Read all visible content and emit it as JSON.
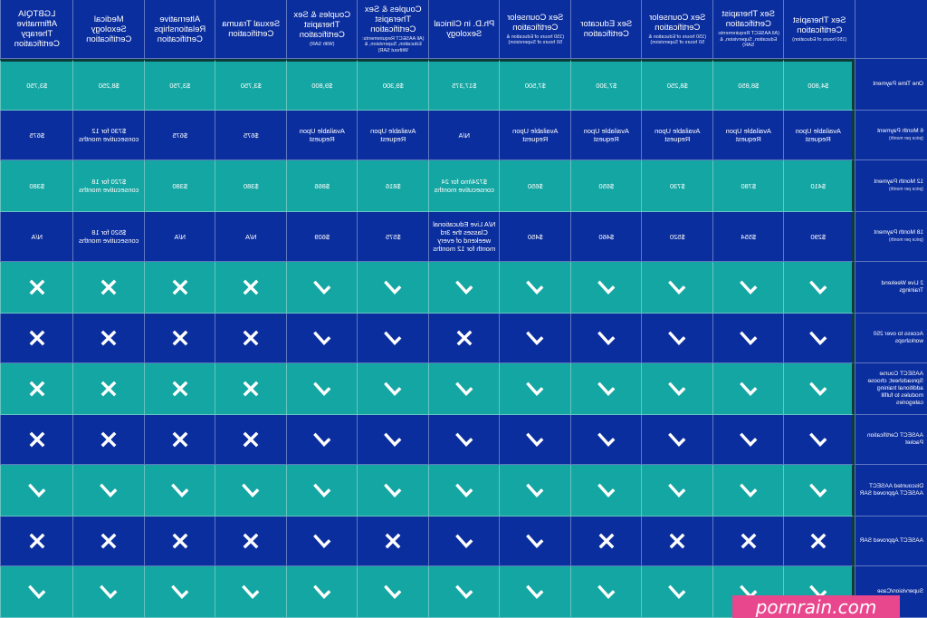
{
  "colors": {
    "teal": "#14a6a2",
    "blue": "#0b2e9e",
    "watermark": "#e8478e"
  },
  "columns": [
    {
      "title": "Sex Therapist Certification",
      "sub": "(150 hours of Education)"
    },
    {
      "title": "Sex Therapist Certification",
      "sub": "(All AASECT Requirements: Education, Supervision, & SAR)"
    },
    {
      "title": "Sex Counselor Certification",
      "sub": "(150 hours of Education & 50 hours of Supervision)"
    },
    {
      "title": "Sex Educator Certification",
      "sub": ""
    },
    {
      "title": "Sex Counselor Certification",
      "sub": "(150 hours of Education & 50 hours of Supervision)"
    },
    {
      "title": "Ph.D. in Clinical Sexology",
      "sub": ""
    },
    {
      "title": "Couples & Sex Therapist Certification",
      "sub": "(All AASECT Requirements: Education, Supervision, & Without SAR)"
    },
    {
      "title": "Couples & Sex Therapist Certification",
      "sub": "(With SAR)"
    },
    {
      "title": "Sexual Trauma Certification",
      "sub": ""
    },
    {
      "title": "Alternative Relationships Certification",
      "sub": ""
    },
    {
      "title": "Medical Sexology Certification",
      "sub": ""
    },
    {
      "title": "LGBTQIA Affirmative Therapy Certification",
      "sub": ""
    }
  ],
  "rows": [
    {
      "label": "One Time Payment",
      "sub": "",
      "type": "text",
      "color": "teal",
      "values": [
        "$4,800",
        "$8,850",
        "$8,250",
        "$7,300",
        "$7,500",
        "$17,375",
        "$9,300",
        "$9,800",
        "$3,750",
        "$3,750",
        "$8,250",
        "$3,750"
      ]
    },
    {
      "label": "6 Month Payment",
      "sub": "(price per month)",
      "type": "text",
      "color": "blue",
      "values": [
        "Available Upon Request",
        "Available Upon Request",
        "Available Upon Request",
        "Available Upon Request",
        "Available Upon Request",
        "N/A",
        "Available Upon Request",
        "Available Upon Request",
        "$675",
        "$675",
        "$730 for 12 consecutive months",
        "$675"
      ]
    },
    {
      "label": "12 Month Payment",
      "sub": "(price per month)",
      "type": "text",
      "color": "teal",
      "values": [
        "$410",
        "$780",
        "$730",
        "$650",
        "$650",
        "$724/mo for 24 consecutive months",
        "$816",
        "$866",
        "$380",
        "$380",
        "$720 for 18 consecutive months",
        "$380"
      ]
    },
    {
      "label": "18 Month Payment",
      "sub": "(price per month)",
      "type": "text",
      "color": "blue",
      "values": [
        "$290",
        "$554",
        "$520",
        "$460",
        "$450",
        "N/A Live Educational Classes the 3rd weekend of every month for 12 months",
        "$575",
        "$609",
        "N/A",
        "N/A",
        "$520 for 18 consecutive months",
        "N/A"
      ]
    },
    {
      "label": "2 Live Weekend Trainings",
      "sub": "",
      "type": "mark",
      "color": "teal",
      "values": [
        "check",
        "check",
        "check",
        "check",
        "check",
        "check",
        "check",
        "check",
        "cross",
        "cross",
        "cross",
        "cross"
      ]
    },
    {
      "label": "Access to over 250 workshops",
      "sub": "",
      "type": "mark",
      "color": "blue",
      "values": [
        "check",
        "check",
        "check",
        "check",
        "check",
        "cross",
        "check",
        "check",
        "cross",
        "cross",
        "cross",
        "cross"
      ]
    },
    {
      "label": "AASECT Course Spreadsheet; choose additional training modules to fulfill categories",
      "sub": "",
      "type": "mark",
      "color": "teal",
      "values": [
        "check",
        "check",
        "check",
        "check",
        "check",
        "check",
        "check",
        "check",
        "cross",
        "cross",
        "cross",
        "cross"
      ]
    },
    {
      "label": "AASECT Certification Packet",
      "sub": "",
      "type": "mark",
      "color": "blue",
      "values": [
        "check",
        "check",
        "check",
        "check",
        "check",
        "check",
        "check",
        "check",
        "cross",
        "cross",
        "cross",
        "cross"
      ]
    },
    {
      "label": "Discounted AASECT AASECT Approved SAR",
      "sub": "",
      "type": "mark",
      "color": "teal",
      "values": [
        "check",
        "check",
        "check",
        "check",
        "check",
        "check",
        "check",
        "check",
        "check",
        "check",
        "check",
        "check"
      ]
    },
    {
      "label": "AASECT Approved SAR",
      "sub": "",
      "type": "mark",
      "color": "blue",
      "values": [
        "cross",
        "cross",
        "cross",
        "cross",
        "check",
        "check",
        "cross",
        "check",
        "cross",
        "cross",
        "cross",
        "cross"
      ]
    },
    {
      "label": "Supervision/Case",
      "sub": "",
      "type": "mark",
      "color": "teal",
      "values": [
        "check",
        "check",
        "check",
        "check",
        "check",
        "check",
        "check",
        "check",
        "check",
        "check",
        "check",
        "check"
      ]
    }
  ],
  "watermark": "pornrain.com"
}
